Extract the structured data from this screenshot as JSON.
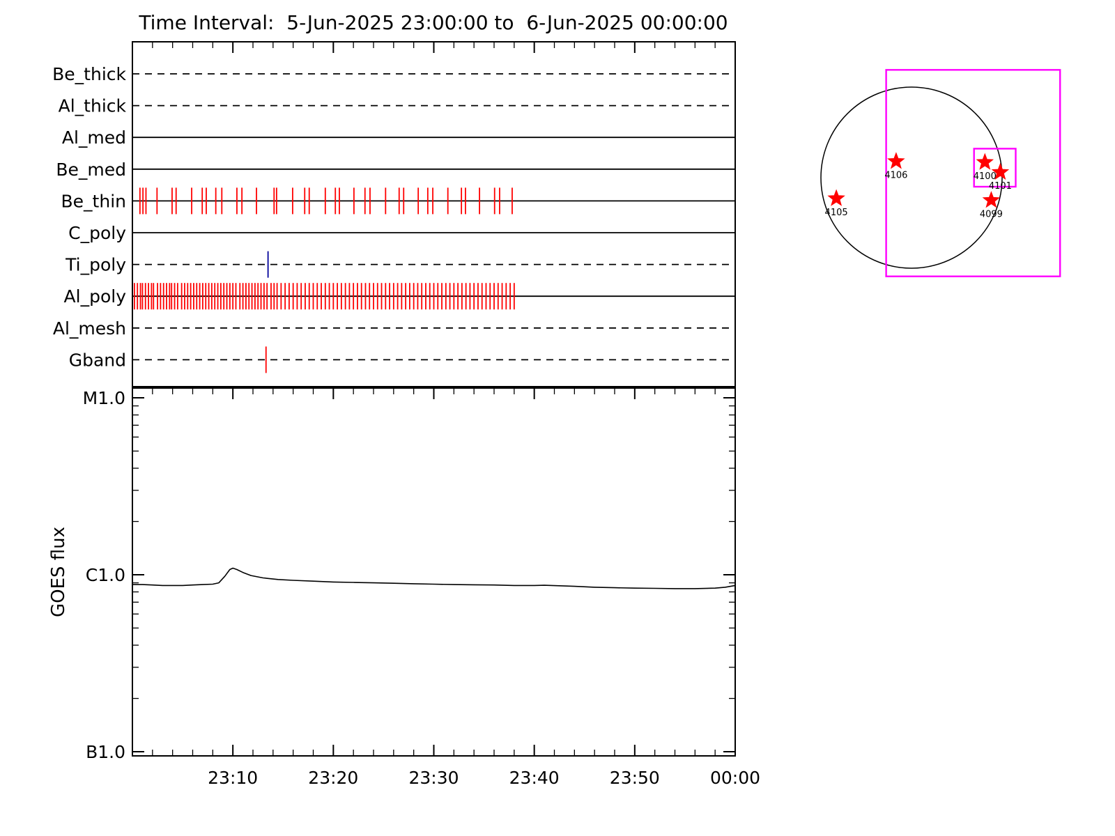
{
  "title": "Time Interval:  5-Jun-2025 23:00:00 to  6-Jun-2025 00:00:00",
  "chart_data": [
    {
      "id": "filter_timeline",
      "type": "timeline",
      "x_start": "23:00",
      "x_end": "00:00",
      "duration_minutes": 60,
      "tick_minor_minutes": 2,
      "tick_major_minutes": 10,
      "rows": [
        {
          "label": "Be_thick",
          "line_style": "dashed",
          "tick_color": "#ff0000",
          "ticks": []
        },
        {
          "label": "Al_thick",
          "line_style": "dashed",
          "tick_color": "#ff0000",
          "ticks": []
        },
        {
          "label": "Al_med",
          "line_style": "solid",
          "tick_color": "#ff0000",
          "ticks": []
        },
        {
          "label": "Be_med",
          "line_style": "solid",
          "tick_color": "#ff0000",
          "ticks": []
        },
        {
          "label": "Be_thin",
          "line_style": "solid",
          "tick_color": "#ff0000",
          "ticks": [
            0.75,
            1.05,
            1.35,
            2.45,
            3.95,
            4.35,
            5.9,
            6.95,
            7.35,
            8.3,
            8.9,
            10.4,
            10.9,
            12.35,
            14.1,
            14.35,
            15.95,
            17.15,
            17.6,
            19.2,
            20.2,
            20.6,
            22.05,
            23.15,
            23.65,
            25.2,
            26.55,
            27.0,
            28.45,
            29.4,
            29.9,
            31.4,
            32.75,
            33.15,
            34.55,
            36.05,
            36.55,
            37.8
          ]
        },
        {
          "label": "C_poly",
          "line_style": "solid",
          "tick_color": "#ff0000",
          "ticks": []
        },
        {
          "label": "Ti_poly",
          "line_style": "dashed",
          "tick_color": "#00009a",
          "ticks": [
            13.5
          ]
        },
        {
          "label": "Al_poly",
          "line_style": "solid",
          "tick_color": "#ff0000",
          "ticks": [
            0.2,
            0.5,
            0.8,
            1.0,
            1.3,
            1.6,
            1.9,
            2.1,
            2.5,
            2.8,
            3.1,
            3.4,
            3.7,
            3.9,
            4.2,
            4.5,
            4.9,
            5.2,
            5.5,
            5.8,
            6.1,
            6.4,
            6.7,
            7.0,
            7.3,
            7.6,
            7.9,
            8.2,
            8.5,
            8.8,
            9.1,
            9.4,
            9.7,
            10.0,
            10.3,
            10.7,
            11.0,
            11.3,
            11.6,
            11.9,
            12.2,
            12.5,
            12.8,
            13.1,
            13.4,
            13.8,
            14.1,
            14.4,
            14.8,
            15.2,
            15.6,
            16.0,
            16.4,
            16.8,
            17.2,
            17.6,
            18.0,
            18.4,
            18.8,
            19.2,
            19.6,
            20.0,
            20.4,
            20.8,
            21.2,
            21.6,
            22.0,
            22.4,
            22.8,
            23.2,
            23.6,
            24.0,
            24.4,
            24.8,
            25.2,
            25.6,
            26.0,
            26.4,
            26.8,
            27.2,
            27.6,
            28.0,
            28.4,
            28.8,
            29.2,
            29.6,
            30.0,
            30.4,
            30.8,
            31.2,
            31.6,
            32.0,
            32.4,
            32.8,
            33.2,
            33.6,
            34.0,
            34.4,
            34.8,
            35.2,
            35.6,
            36.0,
            36.4,
            36.8,
            37.2,
            37.6,
            38.0
          ]
        },
        {
          "label": "Al_mesh",
          "line_style": "dashed",
          "tick_color": "#ff0000",
          "ticks": []
        },
        {
          "label": "Gband",
          "line_style": "dashed",
          "tick_color": "#ff0000",
          "ticks": [
            13.3
          ]
        }
      ]
    },
    {
      "id": "goes_flux",
      "type": "line",
      "ylabel": "GOES flux",
      "yscale": "log",
      "ylim": [
        1e-07,
        1e-05
      ],
      "yticks": [
        {
          "label": "M1.0",
          "value": 1e-05
        },
        {
          "label": "C1.0",
          "value": 1e-06
        },
        {
          "label": "B1.0",
          "value": 1e-07
        }
      ],
      "xticks": [
        {
          "label": "23:10",
          "minute": 10
        },
        {
          "label": "23:20",
          "minute": 20
        },
        {
          "label": "23:30",
          "minute": 30
        },
        {
          "label": "23:40",
          "minute": 40
        },
        {
          "label": "23:50",
          "minute": 50
        },
        {
          "label": "00:00",
          "minute": 60
        }
      ],
      "series": [
        {
          "name": "goes_long_channel",
          "color": "#000000",
          "points": [
            [
              0,
              8.8e-07
            ],
            [
              1,
              8.8e-07
            ],
            [
              2,
              8.75e-07
            ],
            [
              3,
              8.7e-07
            ],
            [
              4,
              8.7e-07
            ],
            [
              5,
              8.7e-07
            ],
            [
              6,
              8.75e-07
            ],
            [
              7,
              8.8e-07
            ],
            [
              8,
              8.85e-07
            ],
            [
              8.6,
              9e-07
            ],
            [
              9.2,
              9.8e-07
            ],
            [
              9.7,
              1.07e-06
            ],
            [
              10.0,
              1.09e-06
            ],
            [
              10.4,
              1.07e-06
            ],
            [
              11,
              1.03e-06
            ],
            [
              11.8,
              9.9e-07
            ],
            [
              13,
              9.6e-07
            ],
            [
              14.5,
              9.4e-07
            ],
            [
              16,
              9.3e-07
            ],
            [
              18,
              9.2e-07
            ],
            [
              20,
              9.1e-07
            ],
            [
              22,
              9.05e-07
            ],
            [
              24,
              9e-07
            ],
            [
              26,
              8.95e-07
            ],
            [
              28,
              8.9e-07
            ],
            [
              30,
              8.85e-07
            ],
            [
              32,
              8.8e-07
            ],
            [
              34,
              8.78e-07
            ],
            [
              36,
              8.75e-07
            ],
            [
              38,
              8.7e-07
            ],
            [
              40,
              8.7e-07
            ],
            [
              41,
              8.72e-07
            ],
            [
              42,
              8.68e-07
            ],
            [
              44,
              8.6e-07
            ],
            [
              46,
              8.5e-07
            ],
            [
              48,
              8.45e-07
            ],
            [
              50,
              8.4e-07
            ],
            [
              52,
              8.38e-07
            ],
            [
              54,
              8.35e-07
            ],
            [
              56,
              8.35e-07
            ],
            [
              58,
              8.4e-07
            ],
            [
              59,
              8.5e-07
            ],
            [
              60,
              8.7e-07
            ]
          ]
        }
      ]
    },
    {
      "id": "solar_disk_map",
      "type": "scatter",
      "disk_color": "#000000",
      "fov_color": "#ff00ff",
      "marker_color": "#ff0000",
      "fov_rect": [
        -0.28,
        -1.19,
        1.92,
        2.28
      ],
      "zoom_box": [
        0.69,
        -0.32,
        0.46,
        0.42
      ],
      "active_regions": [
        {
          "label": "4106",
          "pos": [
            -0.17,
            -0.18
          ]
        },
        {
          "label": "4100",
          "pos": [
            0.81,
            -0.17
          ]
        },
        {
          "label": "4101",
          "pos": [
            0.98,
            -0.06
          ]
        },
        {
          "label": "4099",
          "pos": [
            0.88,
            0.25
          ]
        },
        {
          "label": "4105",
          "pos": [
            -0.83,
            0.23
          ]
        }
      ]
    }
  ]
}
